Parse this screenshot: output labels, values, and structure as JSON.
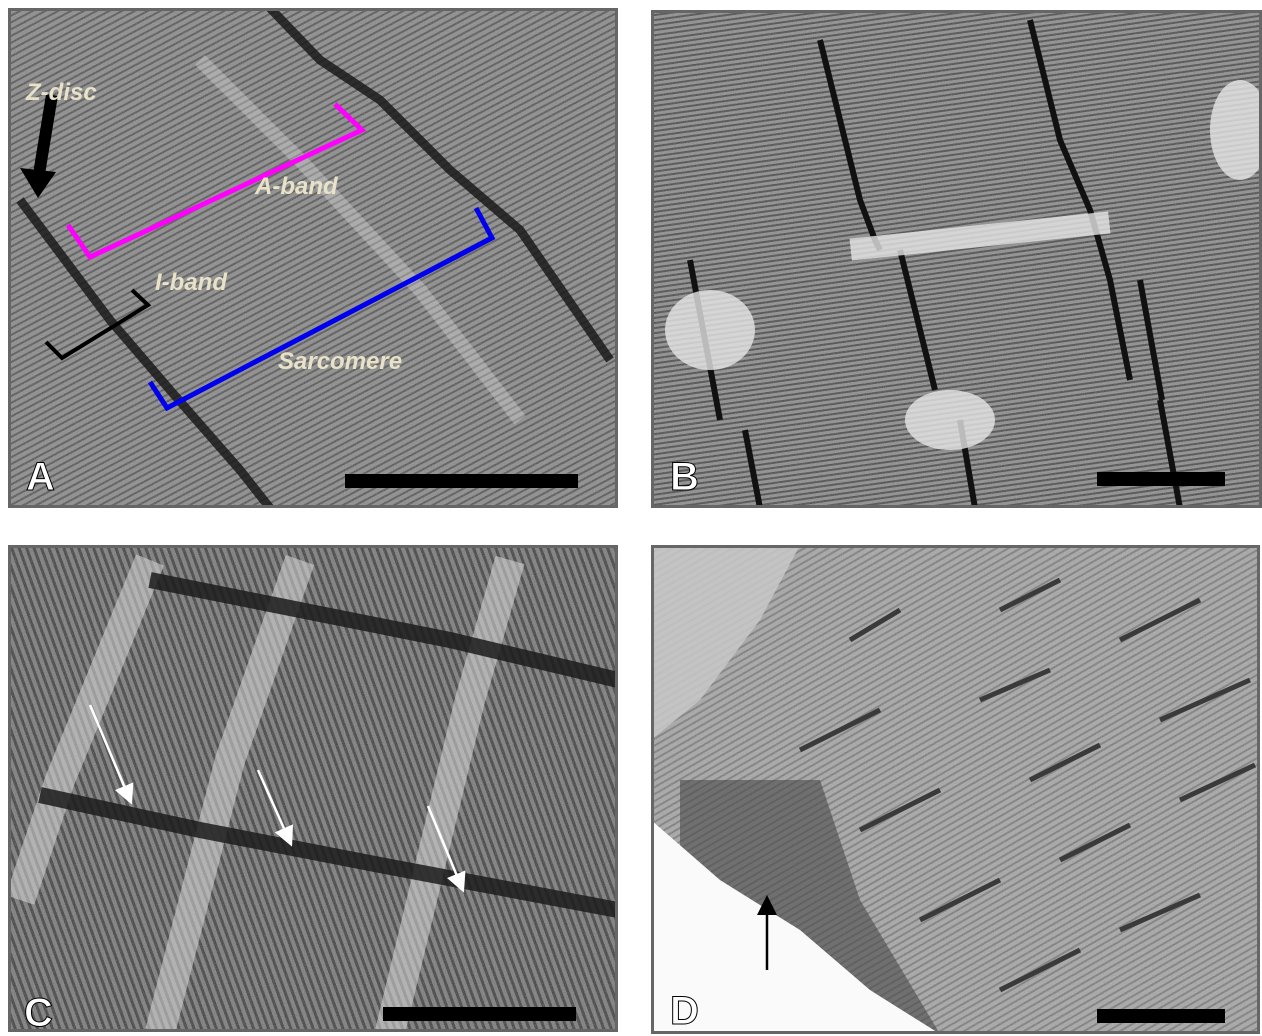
{
  "panels": [
    {
      "label": "A",
      "annotations": {
        "z_disc": "Z-disc",
        "a_band": "A-band",
        "i_band": "I-band",
        "sarcomere": "Sarcomere"
      }
    },
    {
      "label": "B"
    },
    {
      "label": "C"
    },
    {
      "label": "D"
    }
  ]
}
